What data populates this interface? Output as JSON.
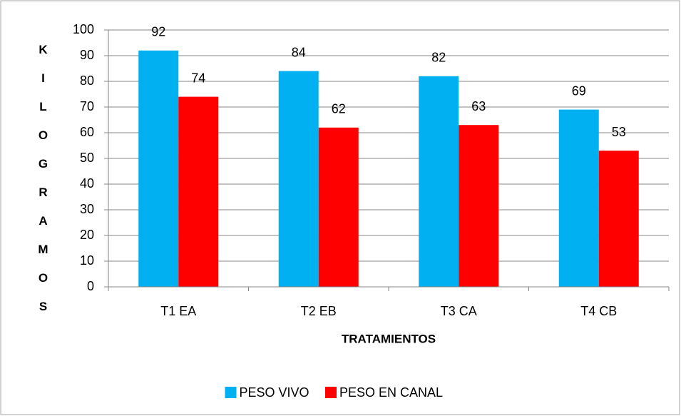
{
  "chart_data": {
    "type": "bar",
    "categories": [
      "T1 EA",
      "T2 EB",
      "T3 CA",
      "T4 CB"
    ],
    "series": [
      {
        "name": "PESO VIVO",
        "color": "#00b0f0",
        "values": [
          92,
          84,
          82,
          69
        ]
      },
      {
        "name": "PESO EN CANAL",
        "color": "#ff0000",
        "values": [
          74,
          62,
          63,
          53
        ]
      }
    ],
    "x_label": "TRATAMIENTOS",
    "y_label": "KILOGRAMOS",
    "ylim": [
      0,
      100
    ],
    "yticks": [
      0,
      10,
      20,
      30,
      40,
      50,
      60,
      70,
      80,
      90,
      100
    ],
    "grid": true,
    "legend": "bottom"
  }
}
